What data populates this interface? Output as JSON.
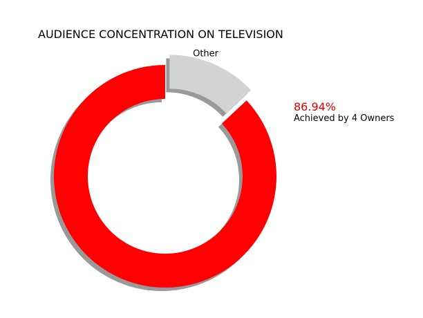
{
  "chart_data": {
    "type": "pie",
    "style": "donut",
    "title": "AUDIENCE CONCENTRATION ON TELEVISION",
    "slices": [
      {
        "label": "",
        "value": 86.94,
        "color": "#ff0000"
      },
      {
        "label": "Other",
        "value": 13.06,
        "color": "#d3d3d3",
        "exploded": true
      }
    ],
    "shadow": true,
    "callout": {
      "percent_text": "86.94%",
      "percent_color": "#e00000",
      "text": "Achieved by 4 Owners"
    }
  }
}
